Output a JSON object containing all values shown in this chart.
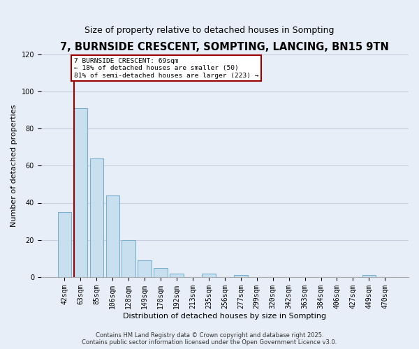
{
  "title": "7, BURNSIDE CRESCENT, SOMPTING, LANCING, BN15 9TN",
  "subtitle": "Size of property relative to detached houses in Sompting",
  "xlabel": "Distribution of detached houses by size in Sompting",
  "ylabel": "Number of detached properties",
  "bar_labels": [
    "42sqm",
    "63sqm",
    "85sqm",
    "106sqm",
    "128sqm",
    "149sqm",
    "170sqm",
    "192sqm",
    "213sqm",
    "235sqm",
    "256sqm",
    "277sqm",
    "299sqm",
    "320sqm",
    "342sqm",
    "363sqm",
    "384sqm",
    "406sqm",
    "427sqm",
    "449sqm",
    "470sqm"
  ],
  "bar_values": [
    35,
    91,
    64,
    44,
    20,
    9,
    5,
    2,
    0,
    2,
    0,
    1,
    0,
    0,
    0,
    0,
    0,
    0,
    0,
    1,
    0
  ],
  "bar_color": "#c8dff0",
  "bar_edge_color": "#7ab0cc",
  "vline_x_index": 1,
  "vline_color": "#990000",
  "ylim": [
    0,
    120
  ],
  "yticks": [
    0,
    20,
    40,
    60,
    80,
    100,
    120
  ],
  "annotation_line1": "7 BURNSIDE CRESCENT: 69sqm",
  "annotation_line2": "← 18% of detached houses are smaller (50)",
  "annotation_line3": "81% of semi-detached houses are larger (223) →",
  "footer_line1": "Contains HM Land Registry data © Crown copyright and database right 2025.",
  "footer_line2": "Contains public sector information licensed under the Open Government Licence v3.0.",
  "background_color": "#e8eef8",
  "plot_bg_color": "#e8eef8",
  "grid_color": "#c8cfe0",
  "title_fontsize": 10.5,
  "subtitle_fontsize": 9,
  "axis_label_fontsize": 8,
  "tick_fontsize": 7,
  "footer_fontsize": 6
}
